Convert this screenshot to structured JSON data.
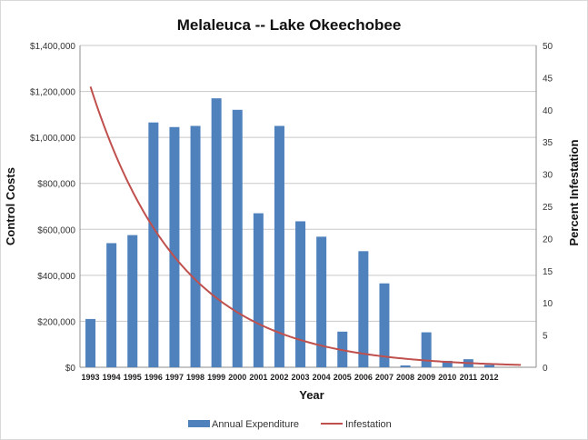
{
  "chart_data": {
    "type": "bar+line",
    "title": "Melaleuca -- Lake Okeechobee",
    "xlabel": "Year",
    "ylabel": "Control Costs",
    "y2label": "Percent Infestation",
    "categories": [
      "1993",
      "1994",
      "1995",
      "1996",
      "1997",
      "1998",
      "1999",
      "2000",
      "2001",
      "2002",
      "2003",
      "2004",
      "2005",
      "2006",
      "2007",
      "2008",
      "2009",
      "2010",
      "2011",
      "2012"
    ],
    "series": [
      {
        "name": "Annual Expenditure",
        "type": "bar",
        "axis": "left",
        "color": "#4f81bd",
        "values": [
          210000,
          540000,
          575000,
          1065000,
          1045000,
          1050000,
          1170000,
          1120000,
          670000,
          1050000,
          635000,
          568000,
          155000,
          505000,
          365000,
          8000,
          152000,
          28000,
          35000,
          10000
        ]
      },
      {
        "name": "Infestation",
        "type": "line",
        "axis": "right",
        "color": "#c0504d",
        "decay_rate": 0.233,
        "start_value": 43.6,
        "x_start": 1993,
        "x_end": 2013.5
      }
    ],
    "ylim": [
      0,
      1400000
    ],
    "y_ticks": [
      "$0",
      "$200,000",
      "$400,000",
      "$600,000",
      "$800,000",
      "$1,000,000",
      "$1,200,000",
      "$1,400,000"
    ],
    "y2lim": [
      0,
      50
    ],
    "y2_ticks": [
      "0",
      "5",
      "10",
      "15",
      "20",
      "25",
      "30",
      "35",
      "40",
      "45",
      "50"
    ],
    "legend": "bottom",
    "grid": true
  }
}
